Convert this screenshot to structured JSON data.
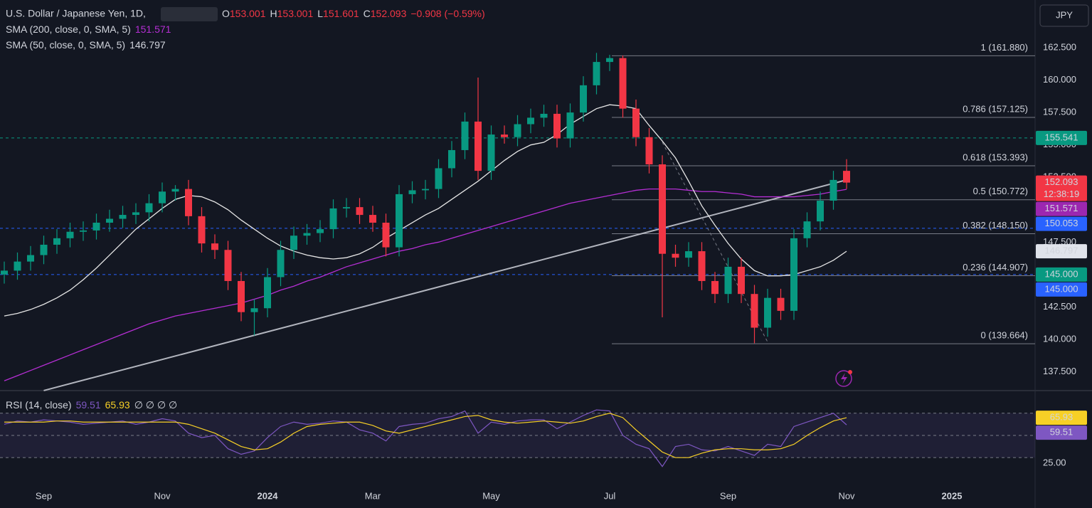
{
  "chart_data": {
    "type": "candlestick",
    "currency": "JPY",
    "header": {
      "symbol": "U.S. Dollar / Japanese Yen, 1D,",
      "o_label": "O",
      "open": 153.001,
      "h_label": "H",
      "high": 153.001,
      "l_label": "L",
      "low": 151.601,
      "c_label": "C",
      "close": 152.093,
      "change": "−0.908 (−0.59%)"
    },
    "categories": [
      null,
      null,
      null,
      "Sep",
      null,
      null,
      null,
      null,
      null,
      null,
      null,
      null,
      "Nov",
      null,
      null,
      null,
      null,
      null,
      null,
      null,
      "2024",
      null,
      null,
      null,
      null,
      null,
      null,
      null,
      "Mar",
      null,
      null,
      null,
      null,
      null,
      null,
      null,
      null,
      "May",
      null,
      null,
      null,
      null,
      null,
      null,
      null,
      null,
      "Jul",
      null,
      null,
      null,
      null,
      null,
      null,
      null,
      null,
      "Sep",
      null,
      null,
      null,
      null,
      null,
      null,
      null,
      null,
      "Nov",
      null,
      null,
      null,
      null,
      null,
      null,
      null,
      "2025",
      null,
      null,
      null,
      null,
      null
    ],
    "open": [
      145.0,
      145.3,
      146.0,
      146.5,
      147.3,
      147.8,
      148.3,
      148.4,
      149.0,
      149.3,
      149.6,
      149.8,
      150.5,
      151.4,
      151.6,
      149.5,
      147.4,
      146.9,
      144.5,
      142.1,
      142.4,
      144.8,
      146.9,
      148.0,
      148.2,
      148.5,
      150.1,
      150.2,
      149.6,
      149.0,
      147.1,
      151.2,
      151.5,
      151.6,
      153.2,
      154.6,
      156.8,
      153.0,
      155.8,
      155.6,
      156.6,
      157.1,
      157.4,
      155.5,
      157.5,
      159.6,
      161.4,
      161.7,
      157.8,
      155.6,
      153.5,
      146.6,
      146.3,
      146.8,
      144.5,
      143.5,
      145.6,
      143.5,
      140.9,
      143.2,
      142.2,
      147.8,
      149.1,
      150.7,
      153.0,
      null,
      null,
      null,
      null,
      null,
      null,
      null,
      null,
      null,
      null,
      null,
      null,
      null
    ],
    "high": [
      146.0,
      146.7,
      147.2,
      148.0,
      148.5,
      149.0,
      149.1,
      149.7,
      150.0,
      150.3,
      150.5,
      151.2,
      152.1,
      151.9,
      152.3,
      150.2,
      148.1,
      147.6,
      145.2,
      143.1,
      145.5,
      147.6,
      148.7,
      148.9,
      149.2,
      150.8,
      150.9,
      150.9,
      150.3,
      149.7,
      151.9,
      152.2,
      152.3,
      153.9,
      155.3,
      157.5,
      160.2,
      156.5,
      156.5,
      157.3,
      157.8,
      158.1,
      158.1,
      158.2,
      160.3,
      162.1,
      161.95,
      161.9,
      158.5,
      156.3,
      154.2,
      147.3,
      147.5,
      147.5,
      145.2,
      146.3,
      146.3,
      144.2,
      143.9,
      143.9,
      148.5,
      149.8,
      151.4,
      153.0,
      153.9,
      null,
      null,
      null,
      null,
      null,
      null,
      null,
      null,
      null,
      null,
      null,
      null,
      null
    ],
    "low": [
      144.3,
      144.6,
      145.3,
      145.8,
      146.6,
      147.1,
      147.6,
      147.7,
      148.3,
      148.6,
      148.9,
      149.1,
      149.8,
      150.7,
      148.8,
      146.7,
      146.2,
      143.8,
      141.4,
      140.3,
      141.7,
      144.1,
      146.2,
      147.3,
      147.5,
      147.8,
      149.4,
      148.9,
      148.3,
      146.4,
      146.4,
      150.5,
      150.8,
      150.9,
      152.5,
      153.9,
      152.3,
      152.3,
      155.1,
      154.9,
      155.9,
      156.4,
      154.8,
      154.8,
      156.8,
      158.9,
      160.7,
      157.1,
      154.9,
      152.8,
      141.7,
      145.6,
      145.6,
      143.8,
      142.8,
      142.8,
      142.8,
      139.7,
      140.2,
      141.5,
      141.5,
      147.1,
      148.4,
      150.0,
      151.6,
      null,
      null,
      null,
      null,
      null,
      null,
      null,
      null,
      null,
      null,
      null,
      null,
      null
    ],
    "close": [
      145.3,
      146.0,
      146.5,
      147.3,
      147.8,
      148.3,
      148.4,
      149.0,
      149.3,
      149.6,
      149.8,
      150.5,
      151.4,
      151.6,
      149.5,
      147.4,
      146.9,
      144.5,
      142.1,
      142.4,
      144.8,
      146.9,
      148.0,
      148.2,
      148.5,
      150.1,
      150.2,
      149.6,
      149.0,
      147.1,
      151.2,
      151.5,
      151.6,
      153.2,
      154.6,
      156.8,
      153.0,
      155.8,
      155.6,
      156.6,
      157.1,
      157.4,
      155.5,
      157.5,
      159.6,
      161.4,
      161.7,
      157.8,
      155.6,
      153.5,
      146.6,
      146.3,
      146.8,
      144.5,
      143.5,
      145.6,
      143.5,
      140.9,
      143.2,
      142.2,
      147.8,
      149.1,
      150.7,
      152.3,
      152.093,
      null,
      null,
      null,
      null,
      null,
      null,
      null,
      null,
      null,
      null,
      null,
      null,
      null
    ],
    "up_color": "#089981",
    "down_color": "#f23645",
    "series": [
      {
        "name": "SMA (200, close, 0, SMA, 5)",
        "color": "#b52ed4",
        "values": [
          136.8,
          137.2,
          137.6,
          138.0,
          138.4,
          138.8,
          139.2,
          139.6,
          140.0,
          140.4,
          140.8,
          141.2,
          141.5,
          141.8,
          142.0,
          142.2,
          142.4,
          142.6,
          142.8,
          143.1,
          143.4,
          143.8,
          144.1,
          144.5,
          144.8,
          145.2,
          145.6,
          145.9,
          146.2,
          146.5,
          146.8,
          147.0,
          147.3,
          147.5,
          147.8,
          148.1,
          148.4,
          148.7,
          149.0,
          149.3,
          149.6,
          149.9,
          150.2,
          150.5,
          150.7,
          150.9,
          151.1,
          151.3,
          151.5,
          151.6,
          151.6,
          151.6,
          151.5,
          151.4,
          151.4,
          151.3,
          151.2,
          151.0,
          151.0,
          151.0,
          151.0,
          151.1,
          151.2,
          151.4,
          151.571,
          null,
          null,
          null,
          null,
          null,
          null,
          null,
          null,
          null,
          null,
          null,
          null,
          null
        ]
      },
      {
        "name": "SMA (50, close, 0, SMA, 5)",
        "color": "#e6e6e6",
        "values": [
          141.8,
          142.0,
          142.3,
          142.7,
          143.2,
          143.8,
          144.6,
          145.5,
          146.5,
          147.5,
          148.5,
          149.3,
          150.1,
          150.8,
          151.1,
          151.0,
          150.6,
          150.0,
          149.2,
          148.5,
          147.8,
          147.2,
          146.8,
          146.5,
          146.3,
          146.2,
          146.3,
          146.6,
          147.1,
          147.8,
          148.4,
          149.0,
          149.6,
          150.1,
          150.8,
          151.5,
          152.2,
          153.0,
          153.8,
          154.5,
          155.0,
          155.2,
          155.8,
          156.6,
          157.2,
          157.8,
          158.1,
          158.0,
          157.8,
          156.5,
          155.3,
          154.0,
          152.2,
          150.3,
          148.8,
          147.4,
          146.2,
          145.3,
          144.9,
          144.9,
          145.0,
          145.3,
          145.6,
          146.1,
          146.797,
          null,
          null,
          null,
          null,
          null,
          null,
          null,
          null,
          null,
          null,
          null,
          null,
          null
        ]
      }
    ],
    "ylim": [
      136.1,
      166.18
    ],
    "yticks": [
      {
        "value": 137.5,
        "label": "137.500"
      },
      {
        "value": 140,
        "label": "140.000"
      },
      {
        "value": 142.5,
        "label": "142.500"
      },
      {
        "value": 145,
        "label": "145.000"
      },
      {
        "value": 147.5,
        "label": "147.500"
      },
      {
        "value": 150,
        "label": "150.000"
      },
      {
        "value": 152.5,
        "label": "152.500"
      },
      {
        "value": 155,
        "label": "155.000"
      },
      {
        "value": 157.5,
        "label": "157.500"
      },
      {
        "value": 160,
        "label": "160.000"
      },
      {
        "value": 162.5,
        "label": "162.500"
      }
    ],
    "fib": [
      {
        "label": "1 (161.880)",
        "value": 161.88
      },
      {
        "label": "0.786 (157.125)",
        "value": 157.125
      },
      {
        "label": "0.618 (153.393)",
        "value": 153.393
      },
      {
        "label": "0.5 (150.772)",
        "value": 150.772
      },
      {
        "label": "0.382 (148.150)",
        "value": 148.15
      },
      {
        "label": "0.236 (144.907)",
        "value": 144.907
      },
      {
        "label": "0 (139.664)",
        "value": 139.664
      }
    ],
    "levels": [
      {
        "value": 155.541,
        "color": "#089981"
      },
      {
        "value": 148.57,
        "color": "#2962ff"
      },
      {
        "value": 145,
        "color": "#2962ff"
      }
    ],
    "trendlines": [
      {
        "from": [
          3,
          136.05
        ],
        "to": [
          64,
          152.3
        ],
        "color": "#b2b5be"
      },
      {
        "from": [
          50,
          155.2
        ],
        "to": [
          58,
          139.8
        ],
        "color": "#787b86",
        "dashed": true
      }
    ],
    "badges": [
      {
        "value": 155.541,
        "color": "#089981"
      },
      {
        "value": 152.093,
        "color": "#f23645",
        "sub": "12:38:19"
      },
      {
        "value": 151.571,
        "color": "#9c27b0"
      },
      {
        "value": 150.053,
        "color": "#2962ff"
      },
      {
        "value": 146.797,
        "color": "#e0e3eb",
        "text_color": "#131722"
      },
      {
        "value": 145,
        "label": "145.000",
        "color": "#089981"
      },
      {
        "value": 145,
        "label": "145.000",
        "color": "#2962ff"
      }
    ],
    "rsi": {
      "name": "RSI (14, close)",
      "color": "#7e57c2",
      "ma_color": "#f7d026",
      "nulls": "∅ ∅ ∅ ∅",
      "values": [
        60,
        63,
        62,
        64,
        63,
        62,
        60,
        61,
        62,
        63,
        60,
        62,
        65,
        63,
        52,
        48,
        50,
        38,
        33,
        36,
        48,
        58,
        62,
        60,
        61,
        63,
        62,
        55,
        52,
        45,
        58,
        60,
        61,
        65,
        67,
        72,
        52,
        62,
        60,
        63,
        64,
        64,
        56,
        62,
        68,
        73,
        72,
        50,
        42,
        38,
        22,
        40,
        42,
        37,
        36,
        40,
        36,
        32,
        42,
        40,
        58,
        62,
        66,
        70,
        59.51,
        null,
        null,
        null,
        null,
        null,
        null,
        null,
        null,
        null,
        null,
        null,
        null,
        null
      ],
      "ma_values": [
        62,
        62,
        62,
        62,
        63,
        63,
        62,
        62,
        62,
        62,
        62,
        62,
        62,
        62,
        60,
        56,
        52,
        46,
        40,
        37,
        38,
        44,
        52,
        58,
        60,
        61,
        62,
        62,
        59,
        54,
        52,
        55,
        58,
        61,
        64,
        67,
        68,
        64,
        62,
        61,
        62,
        63,
        62,
        61,
        63,
        67,
        70,
        66,
        55,
        45,
        35,
        30,
        30,
        34,
        37,
        38,
        38,
        37,
        37,
        38,
        42,
        50,
        57,
        63,
        65.93,
        null,
        null,
        null,
        null,
        null,
        null,
        null,
        null,
        null,
        null,
        null,
        null,
        null
      ],
      "ylim": [
        3.2,
        89.7
      ],
      "yticks": [
        {
          "value": 25,
          "label": "25.00"
        },
        {
          "value": 50,
          "label": "50.00"
        }
      ],
      "bands": [
        70,
        50,
        30
      ],
      "badge_colors": [
        "#f7d026",
        "#7e57c2"
      ]
    }
  }
}
